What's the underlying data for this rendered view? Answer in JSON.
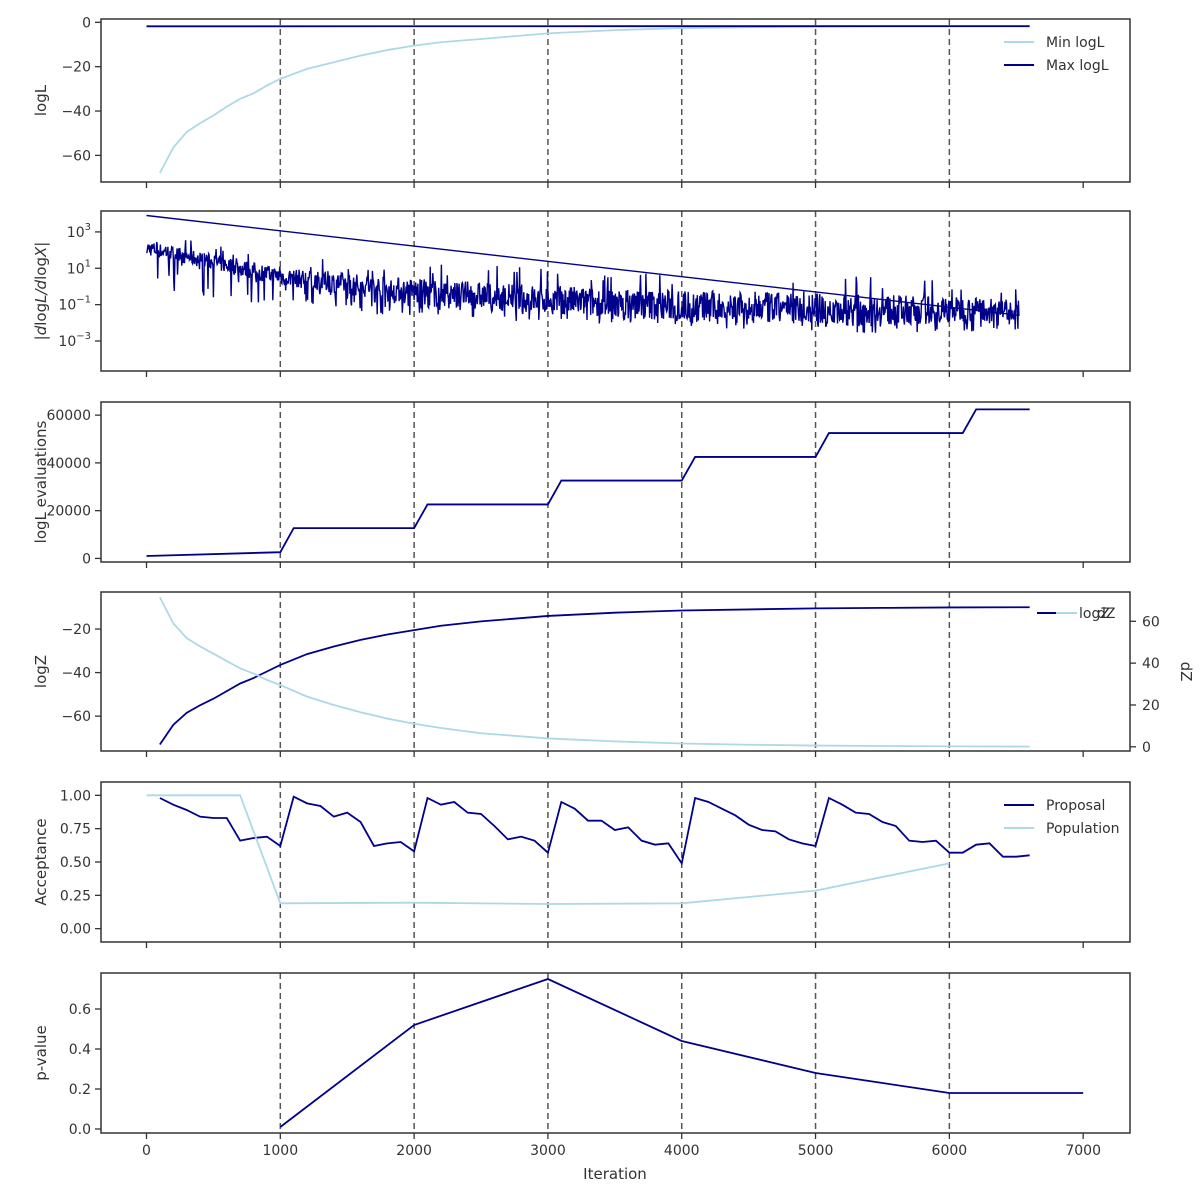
{
  "figure": {
    "xlabel": "Iteration",
    "x_range": [
      -340,
      7350
    ],
    "x_ticks": [
      0,
      1000,
      2000,
      3000,
      4000,
      5000,
      6000,
      7000
    ],
    "x_tick_labels": [
      "0",
      "1000",
      "2000",
      "3000",
      "4000",
      "5000",
      "6000",
      "7000"
    ],
    "dashed_vlines": [
      1000,
      2000,
      3000,
      4000,
      5000,
      6000
    ],
    "colors": {
      "dark": "#00008b",
      "light": "#add8e6",
      "axis": "#333333",
      "vline": "#555555"
    }
  },
  "chart_data": [
    {
      "type": "line",
      "ylabel": "logL",
      "ylim": [
        -72,
        1.5
      ],
      "yticks": [
        0,
        -20,
        -40,
        -60
      ],
      "ytick_labels": [
        "0",
        "−20",
        "−40",
        "−60"
      ],
      "legend": {
        "placement": "upper-right",
        "entries": [
          "Min logL",
          "Max logL"
        ]
      },
      "series": [
        {
          "name": "Min logL",
          "color": "#add8e6",
          "x": [
            100,
            200,
            300,
            400,
            500,
            600,
            700,
            800,
            900,
            1000,
            1200,
            1400,
            1600,
            1800,
            2000,
            2200,
            2500,
            3000,
            3500,
            4000,
            4500,
            5000,
            5500,
            6000,
            6600
          ],
          "y": [
            -68,
            -56.5,
            -49.5,
            -45.5,
            -42,
            -38,
            -34.5,
            -32,
            -28.5,
            -25.5,
            -21,
            -18,
            -15,
            -12.5,
            -10.5,
            -9,
            -7.5,
            -5,
            -3.5,
            -2.6,
            -2.2,
            -2.0,
            -1.9,
            -1.9,
            -1.9
          ]
        },
        {
          "name": "Max logL",
          "color": "#00008b",
          "x": [
            0,
            6600
          ],
          "y": [
            -1.8,
            -1.7
          ]
        }
      ]
    },
    {
      "type": "line",
      "ylabel": "|dlogL/dlogX|",
      "yscale": "log",
      "ylim": [
        -4.65,
        4.15
      ],
      "yticks": [
        3,
        1,
        -1,
        -3
      ],
      "ytick_labels": [
        "10^3",
        "10^1",
        "10^−1",
        "10^−3"
      ],
      "series": [
        {
          "name": "",
          "color": "#00008b",
          "x_range": [
            0,
            6520
          ],
          "upper_log": [
            3.0,
            1.6,
            1.3,
            0.9,
            0.6,
            0.0
          ],
          "lower_log": [
            0.0,
            -1.2,
            -1.7,
            -2.1,
            -2.6,
            -2.5
          ],
          "core_log": [
            2.0,
            0.4,
            -0.5,
            -1.2,
            -1.6,
            -1.4
          ],
          "anchor_x": [
            0,
            1000,
            2000,
            3500,
            5500,
            6520
          ]
        }
      ]
    },
    {
      "type": "line",
      "ylabel": "logL evaluations",
      "ylim": [
        -1500,
        65500
      ],
      "yticks": [
        0,
        20000,
        40000,
        60000
      ],
      "ytick_labels": [
        "0",
        "20000",
        "40000",
        "60000"
      ],
      "series": [
        {
          "name": "",
          "color": "#00008b",
          "x": [
            0,
            1000,
            1100,
            2000,
            2100,
            3000,
            3100,
            4000,
            4100,
            5000,
            5100,
            6100,
            6200,
            6600
          ],
          "y": [
            1000,
            2600,
            12700,
            12700,
            22600,
            22600,
            32600,
            32600,
            42500,
            42500,
            52500,
            52500,
            62400,
            62400
          ]
        }
      ]
    },
    {
      "type": "line",
      "ylabel": "logZ",
      "ylim": [
        -76,
        -3
      ],
      "yticks": [
        -20,
        -40,
        -60
      ],
      "ytick_labels": [
        "−20",
        "−40",
        "−60"
      ],
      "y2label": "dZ",
      "y2lim": [
        -2,
        74
      ],
      "y2ticks": [
        0,
        20,
        40,
        60
      ],
      "y2tick_labels": [
        "0",
        "20",
        "40",
        "60"
      ],
      "legend": {
        "placement": "upper-right",
        "entries": [
          "logZ",
          "dZ"
        ]
      },
      "series": [
        {
          "name": "logZ",
          "color": "#00008b",
          "axis": "left",
          "x": [
            100,
            200,
            300,
            400,
            500,
            600,
            700,
            800,
            900,
            1000,
            1200,
            1400,
            1600,
            1800,
            2000,
            2200,
            2500,
            3000,
            3500,
            4000,
            4500,
            5000,
            5500,
            6000,
            6600
          ],
          "y": [
            -73,
            -64,
            -58.5,
            -55,
            -52,
            -48.5,
            -45,
            -42.5,
            -39.5,
            -36.5,
            -31.5,
            -28,
            -25,
            -22.5,
            -20.5,
            -18.5,
            -16.5,
            -14,
            -12.5,
            -11.5,
            -11,
            -10.5,
            -10.3,
            -10.1,
            -10.0
          ]
        },
        {
          "name": "dZ",
          "color": "#add8e6",
          "axis": "right",
          "x": [
            100,
            200,
            300,
            400,
            500,
            600,
            700,
            800,
            900,
            1000,
            1200,
            1400,
            1600,
            1800,
            2000,
            2200,
            2500,
            3000,
            3500,
            4000,
            4500,
            5000,
            5500,
            6000,
            6600
          ],
          "y": [
            71.5,
            59,
            52,
            48,
            44.5,
            41,
            37.5,
            35,
            32,
            29.5,
            24,
            20,
            16.5,
            13.5,
            11,
            9,
            6.5,
            4,
            2.6,
            1.6,
            1.0,
            0.6,
            0.4,
            0.2,
            0.1
          ]
        }
      ]
    },
    {
      "type": "line",
      "ylabel": "Acceptance",
      "ylim": [
        -0.1,
        1.1
      ],
      "yticks": [
        0,
        0.25,
        0.5,
        0.75,
        1.0
      ],
      "ytick_labels": [
        "0.00",
        "0.25",
        "0.50",
        "0.75",
        "1.00"
      ],
      "legend": {
        "placement": "upper-right",
        "entries": [
          "Proposal",
          "Population"
        ]
      },
      "series": [
        {
          "name": "Proposal",
          "color": "#00008b",
          "x": [
            100,
            200,
            300,
            400,
            500,
            600,
            700,
            800,
            900,
            1000,
            1100,
            1200,
            1300,
            1400,
            1500,
            1600,
            1700,
            1800,
            1900,
            2000,
            2100,
            2200,
            2300,
            2400,
            2500,
            2600,
            2700,
            2800,
            2900,
            3000,
            3100,
            3200,
            3300,
            3400,
            3500,
            3600,
            3700,
            3800,
            3900,
            4000,
            4100,
            4200,
            4300,
            4400,
            4500,
            4600,
            4700,
            4800,
            4900,
            5000,
            5100,
            5200,
            5300,
            5400,
            5500,
            5600,
            5700,
            5800,
            5900,
            6000,
            6100,
            6200,
            6300,
            6400,
            6500,
            6600
          ],
          "y": [
            0.98,
            0.93,
            0.89,
            0.84,
            0.83,
            0.83,
            0.66,
            0.68,
            0.69,
            0.62,
            0.99,
            0.94,
            0.92,
            0.84,
            0.87,
            0.8,
            0.62,
            0.64,
            0.65,
            0.58,
            0.98,
            0.93,
            0.95,
            0.87,
            0.86,
            0.77,
            0.67,
            0.69,
            0.66,
            0.57,
            0.95,
            0.9,
            0.81,
            0.81,
            0.74,
            0.76,
            0.66,
            0.63,
            0.64,
            0.49,
            0.98,
            0.95,
            0.9,
            0.85,
            0.78,
            0.74,
            0.73,
            0.67,
            0.64,
            0.62,
            0.98,
            0.93,
            0.87,
            0.86,
            0.8,
            0.77,
            0.66,
            0.65,
            0.66,
            0.57,
            0.57,
            0.63,
            0.64,
            0.54,
            0.54,
            0.55
          ]
        },
        {
          "name": "Population",
          "color": "#add8e6",
          "x": [
            0,
            700,
            1000,
            2000,
            3000,
            4000,
            5000,
            6000
          ],
          "y": [
            1.0,
            1.0,
            0.19,
            0.195,
            0.185,
            0.19,
            0.285,
            0.49
          ]
        }
      ]
    },
    {
      "type": "line",
      "ylabel": "p-value",
      "ylim": [
        -0.02,
        0.78
      ],
      "yticks": [
        0,
        0.2,
        0.4,
        0.6
      ],
      "ytick_labels": [
        "0.0",
        "0.2",
        "0.4",
        "0.6"
      ],
      "series": [
        {
          "name": "",
          "color": "#00008b",
          "x": [
            1000,
            2000,
            3000,
            4000,
            5000,
            6000,
            7000
          ],
          "y": [
            0.01,
            0.52,
            0.75,
            0.44,
            0.28,
            0.18,
            0.18
          ]
        }
      ]
    }
  ]
}
